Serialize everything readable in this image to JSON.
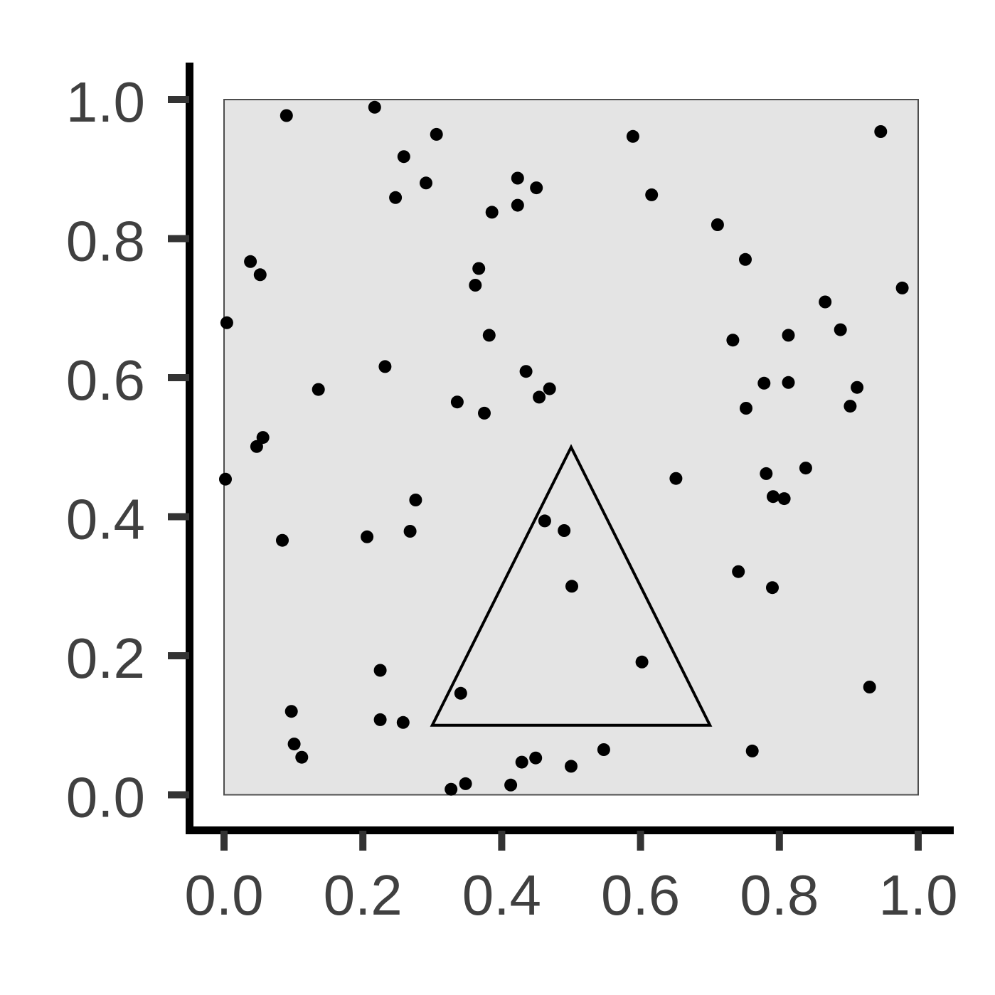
{
  "chart_data": {
    "type": "scatter",
    "title": "",
    "xlabel": "",
    "ylabel": "",
    "xlim": [
      0,
      1
    ],
    "ylim": [
      0,
      1
    ],
    "grid": "off",
    "legend": "none",
    "x_tick_values": [
      0.0,
      0.2,
      0.4,
      0.6,
      0.8,
      1.0
    ],
    "x_tick_labels": [
      "0.0",
      "0.2",
      "0.4",
      "0.6",
      "0.8",
      "1.0"
    ],
    "y_tick_values": [
      0.0,
      0.2,
      0.4,
      0.6,
      0.8,
      1.0
    ],
    "y_tick_labels": [
      "0.0",
      "0.2",
      "0.4",
      "0.6",
      "0.8",
      "1.0"
    ],
    "points": [
      [
        0.09,
        0.977
      ],
      [
        0.217,
        0.989
      ],
      [
        0.306,
        0.95
      ],
      [
        0.259,
        0.918
      ],
      [
        0.291,
        0.88
      ],
      [
        0.423,
        0.887
      ],
      [
        0.45,
        0.873
      ],
      [
        0.247,
        0.859
      ],
      [
        0.386,
        0.838
      ],
      [
        0.423,
        0.848
      ],
      [
        0.038,
        0.767
      ],
      [
        0.052,
        0.748
      ],
      [
        0.367,
        0.757
      ],
      [
        0.362,
        0.733
      ],
      [
        0.004,
        0.679
      ],
      [
        0.382,
        0.661
      ],
      [
        0.232,
        0.616
      ],
      [
        0.136,
        0.583
      ],
      [
        0.435,
        0.609
      ],
      [
        0.469,
        0.584
      ],
      [
        0.454,
        0.572
      ],
      [
        0.336,
        0.565
      ],
      [
        0.375,
        0.549
      ],
      [
        0.056,
        0.514
      ],
      [
        0.047,
        0.501
      ],
      [
        0.589,
        0.947
      ],
      [
        0.946,
        0.954
      ],
      [
        0.616,
        0.863
      ],
      [
        0.711,
        0.82
      ],
      [
        0.751,
        0.77
      ],
      [
        0.977,
        0.729
      ],
      [
        0.866,
        0.709
      ],
      [
        0.888,
        0.669
      ],
      [
        0.813,
        0.661
      ],
      [
        0.733,
        0.654
      ],
      [
        0.778,
        0.592
      ],
      [
        0.813,
        0.593
      ],
      [
        0.912,
        0.586
      ],
      [
        0.752,
        0.556
      ],
      [
        0.902,
        0.559
      ],
      [
        0.002,
        0.454
      ],
      [
        0.276,
        0.424
      ],
      [
        0.084,
        0.366
      ],
      [
        0.206,
        0.371
      ],
      [
        0.268,
        0.379
      ],
      [
        0.462,
        0.394
      ],
      [
        0.49,
        0.38
      ],
      [
        0.501,
        0.3
      ],
      [
        0.225,
        0.179
      ],
      [
        0.341,
        0.146
      ],
      [
        0.097,
        0.12
      ],
      [
        0.225,
        0.108
      ],
      [
        0.258,
        0.104
      ],
      [
        0.101,
        0.073
      ],
      [
        0.112,
        0.054
      ],
      [
        0.429,
        0.047
      ],
      [
        0.449,
        0.053
      ],
      [
        0.413,
        0.014
      ],
      [
        0.327,
        0.008
      ],
      [
        0.348,
        0.016
      ],
      [
        0.651,
        0.455
      ],
      [
        0.781,
        0.462
      ],
      [
        0.838,
        0.47
      ],
      [
        0.791,
        0.429
      ],
      [
        0.807,
        0.426
      ],
      [
        0.741,
        0.321
      ],
      [
        0.79,
        0.298
      ],
      [
        0.602,
        0.191
      ],
      [
        0.93,
        0.155
      ],
      [
        0.547,
        0.065
      ],
      [
        0.5,
        0.041
      ],
      [
        0.761,
        0.063
      ]
    ],
    "triangle_vertices": [
      [
        0.5,
        0.5
      ],
      [
        0.3,
        0.1
      ],
      [
        0.7,
        0.1
      ]
    ],
    "colors": {
      "panel_background": "#e4e4e4",
      "panel_border": "#4d4d4d",
      "axis_line": "#000000",
      "tick_mark": "#333333",
      "tick_label": "#404040",
      "point": "#000000",
      "triangle_stroke": "#000000"
    }
  }
}
